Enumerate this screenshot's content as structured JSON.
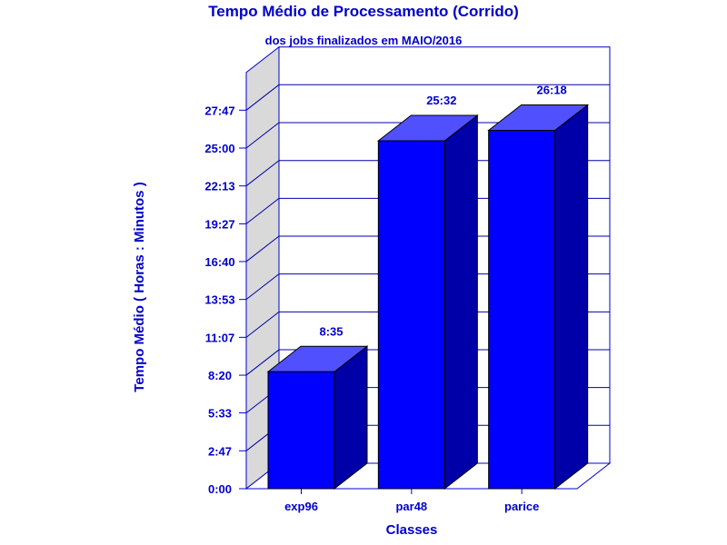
{
  "colors": {
    "text": "#0000cc",
    "frame": "#0000cc",
    "grid": "#0000aa",
    "side_wall": "#d9d9d9",
    "bar_front": "#0000ff",
    "bar_top": "#5050ff",
    "bar_side": "#0000a8"
  },
  "chart_data": {
    "type": "bar",
    "title": "Tempo Médio de Processamento (Corrido)",
    "subtitle": "dos jobs finalizados em MAIO/2016",
    "xlabel": "Classes",
    "ylabel": "Tempo Médio ( Horas : Minutos )",
    "categories": [
      "exp96",
      "par48",
      "parice"
    ],
    "values": [
      8.583,
      25.533,
      26.3
    ],
    "value_labels": [
      "8:35",
      "25:32",
      "26:18"
    ],
    "ylim": [
      0,
      30.55
    ],
    "yticks": [
      0,
      2.78,
      5.56,
      8.33,
      11.11,
      13.89,
      16.67,
      19.44,
      22.22,
      25.0,
      27.78
    ],
    "ytick_labels": [
      "0:00",
      "2:47",
      "5:33",
      "8:20",
      "11:07",
      "13:53",
      "16:40",
      "19:27",
      "22:13",
      "25:00",
      "27:47"
    ],
    "grid": true,
    "legend": "none",
    "style": "3d"
  }
}
